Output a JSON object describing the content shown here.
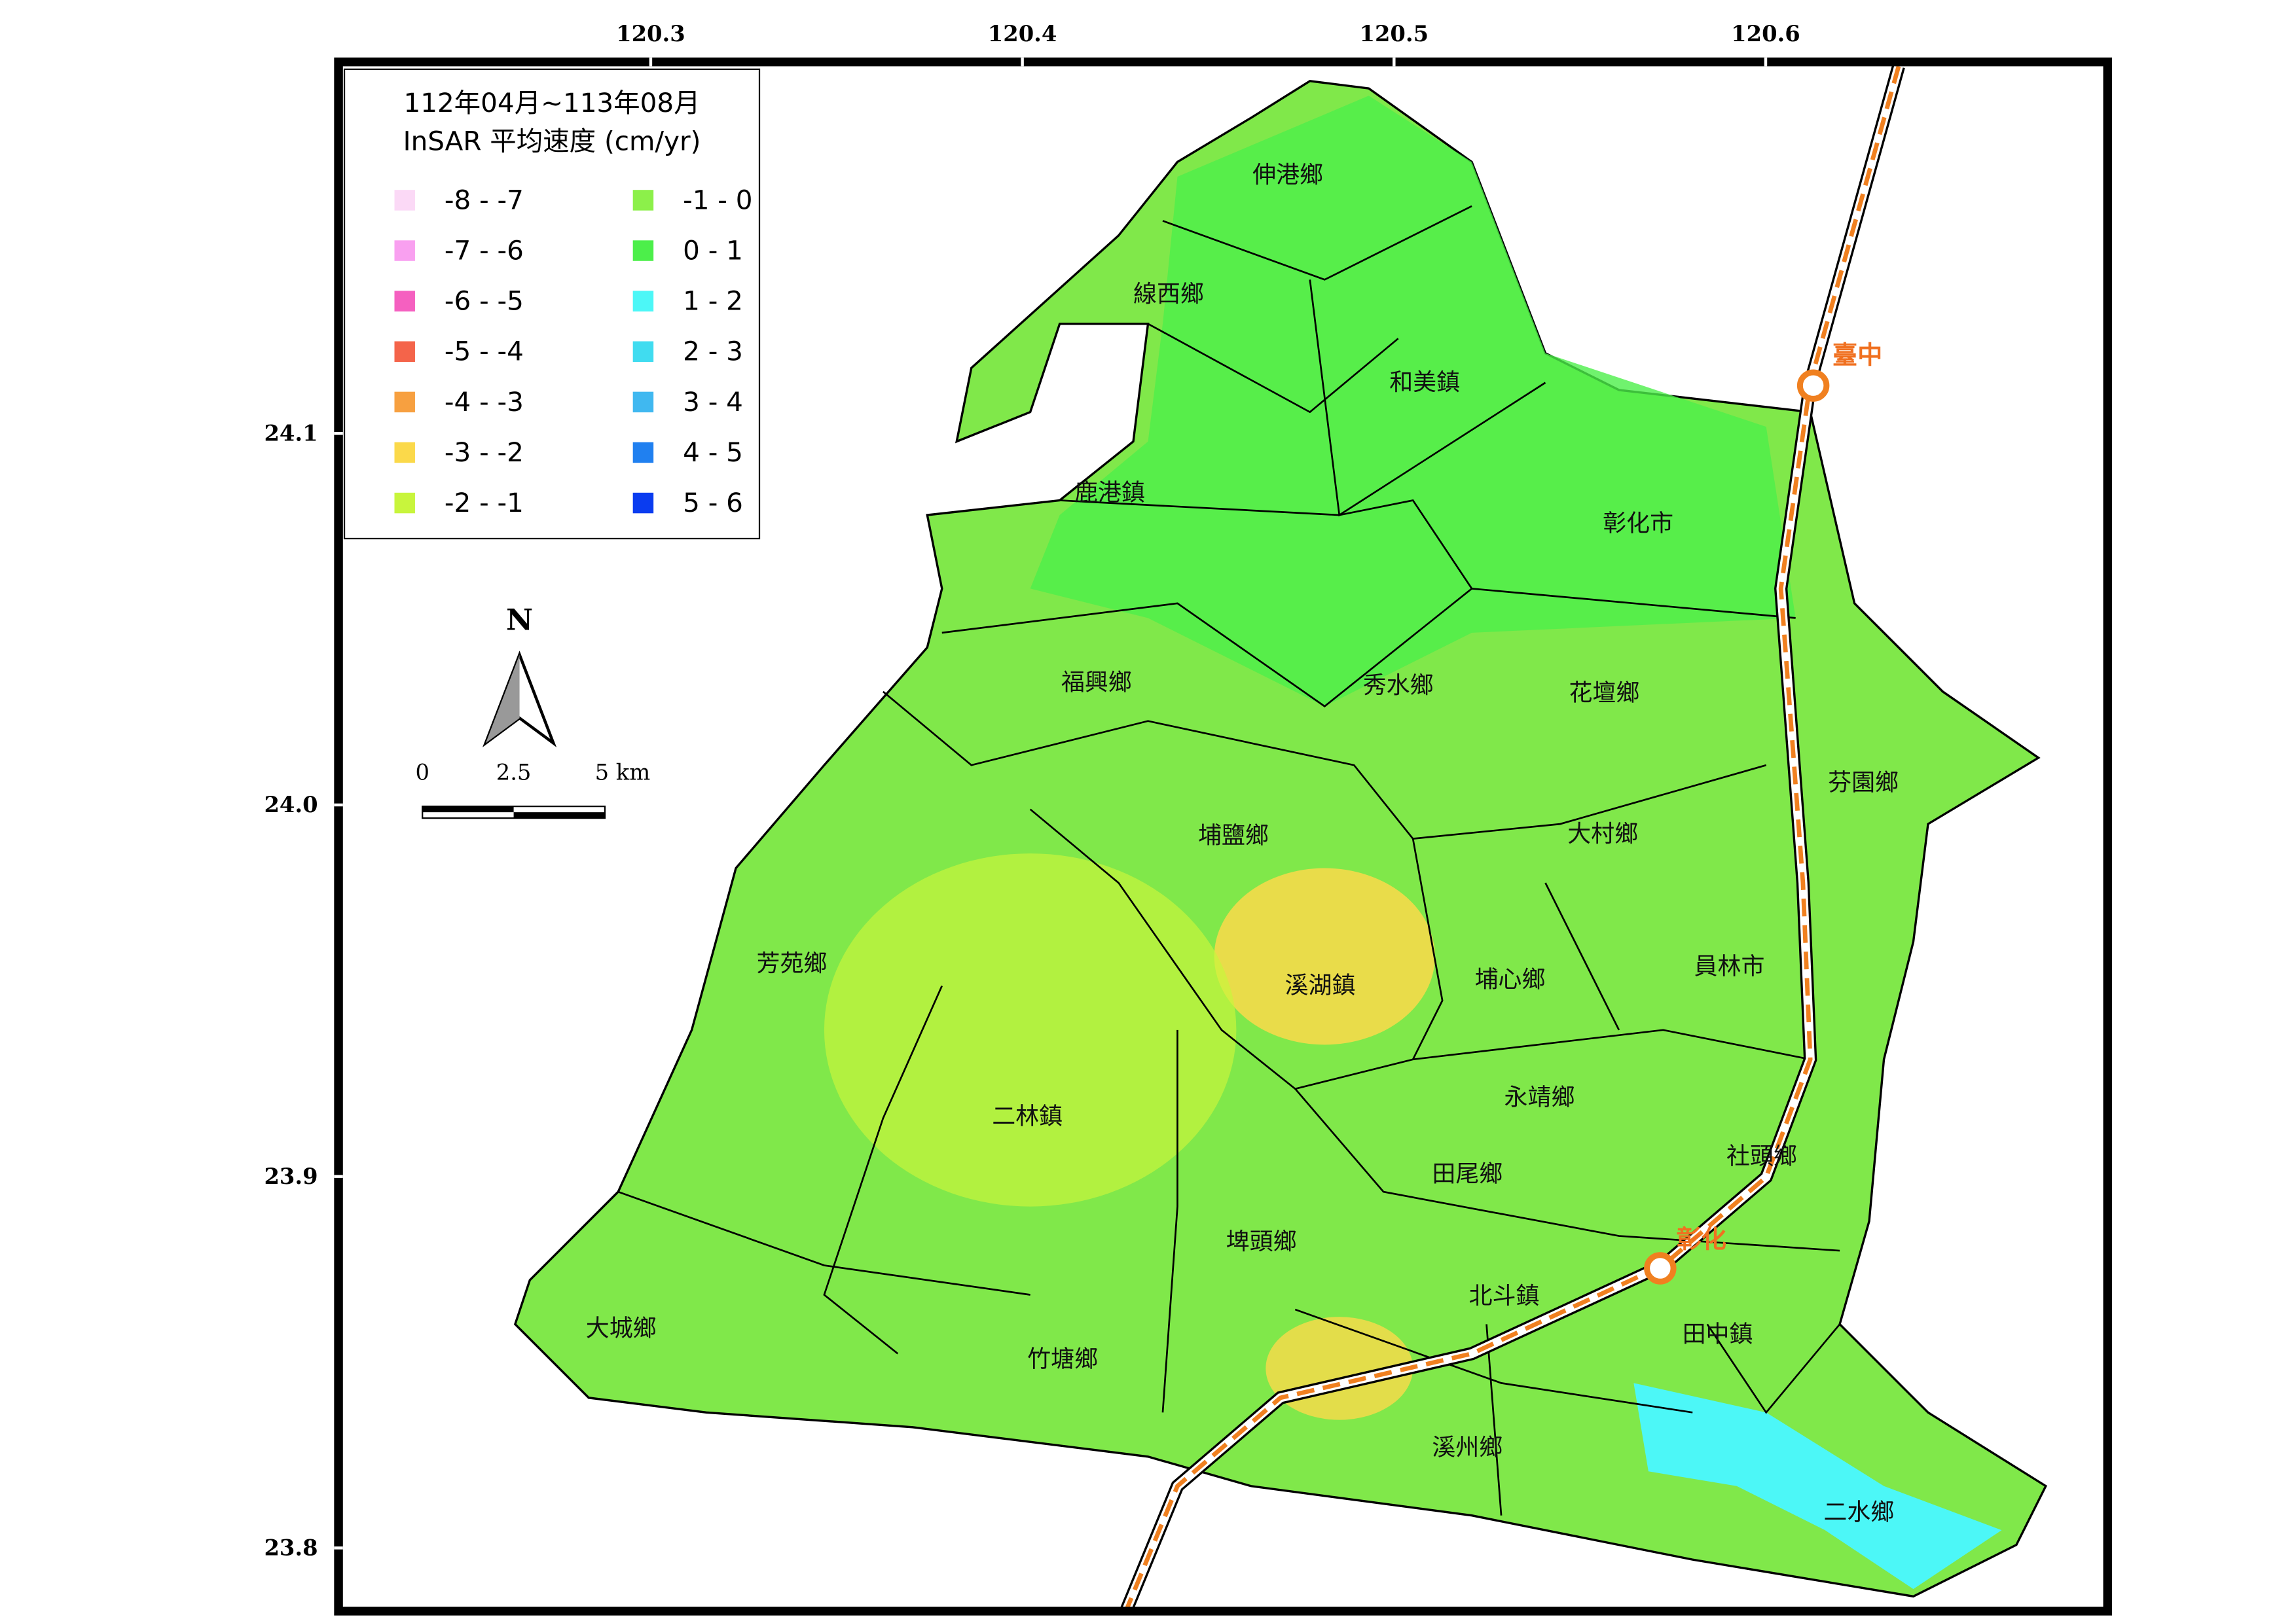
{
  "title_lines": [
    "112年04月~113年08月",
    "InSAR 平均速度 (cm/yr)"
  ],
  "legend": [
    {
      "label": "-8 - -7",
      "color": "#fbd9f6"
    },
    {
      "label": "-7 - -6",
      "color": "#f9a0f0"
    },
    {
      "label": "-6 - -5",
      "color": "#f560c0"
    },
    {
      "label": "-5 - -4",
      "color": "#f4644a"
    },
    {
      "label": "-4 - -3",
      "color": "#f7a040"
    },
    {
      "label": "-3 - -2",
      "color": "#fbd94a"
    },
    {
      "label": "-2 - -1",
      "color": "#c8f53c"
    },
    {
      "label": "-1 - 0",
      "color": "#8cf04a"
    },
    {
      "label": "0 - 1",
      "color": "#4cef4a"
    },
    {
      "label": "1 - 2",
      "color": "#4cf7f7"
    },
    {
      "label": "2 - 3",
      "color": "#40dcf0"
    },
    {
      "label": "3 - 4",
      "color": "#40b8f0"
    },
    {
      "label": "4 - 5",
      "color": "#2080f0"
    },
    {
      "label": "5 - 6",
      "color": "#0a3cf0"
    }
  ],
  "map": {
    "lonlim": [
      120.216,
      120.692
    ],
    "latlim": [
      23.783,
      24.2
    ],
    "lonticks": [
      120.3,
      120.4,
      120.5,
      120.6
    ],
    "latticks": [
      24.1,
      {
        "value": 24,
        "label": "24.0"
      },
      23.9,
      23.8
    ]
  },
  "north": "N",
  "scale_bar": [
    "0",
    "2.5",
    "5 km"
  ],
  "townships": [
    "伸港鄉",
    "線西鄉",
    "和美鎮",
    "鹿港鎮",
    "彰化市",
    "福興鄉",
    "秀水鄉",
    "花壇鄉",
    "芬園鄉",
    "埔鹽鄉",
    "大村鄉",
    "芳苑鄉",
    "溪湖鎮",
    "埔心鄉",
    "員林市",
    "二林鎮",
    "永靖鄉",
    "社頭鄉",
    "田尾鄉",
    "埤頭鄉",
    "北斗鎮",
    "田中鎮",
    "大城鄉",
    "竹塘鄉",
    "溪州鄉",
    "二水鄉"
  ],
  "stations": [
    "臺中",
    "彰化"
  ]
}
